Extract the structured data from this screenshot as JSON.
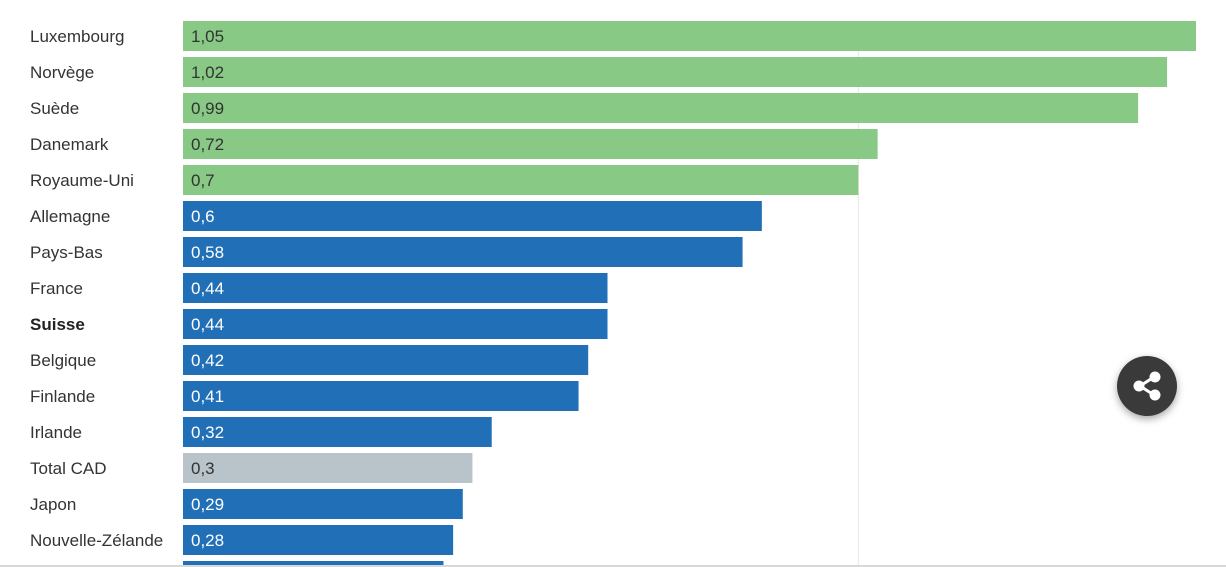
{
  "chart_data": {
    "type": "bar",
    "orientation": "horizontal",
    "categories": [
      "Luxembourg",
      "Norvège",
      "Suède",
      "Danemark",
      "Royaume-Uni",
      "Allemagne",
      "Pays-Bas",
      "France",
      "Suisse",
      "Belgique",
      "Finlande",
      "Irlande",
      "Total CAD",
      "Japon",
      "Nouvelle-Zélande"
    ],
    "values": [
      1.05,
      1.02,
      0.99,
      0.72,
      0.7,
      0.6,
      0.58,
      0.44,
      0.44,
      0.42,
      0.41,
      0.32,
      0.3,
      0.29,
      0.28
    ],
    "value_labels": [
      "1,05",
      "1,02",
      "0,99",
      "0,72",
      "0,7",
      "0,6",
      "0,58",
      "0,44",
      "0,44",
      "0,42",
      "0,41",
      "0,32",
      "0,3",
      "0,29",
      "0,28"
    ],
    "bar_groups": [
      "green",
      "green",
      "green",
      "green",
      "green",
      "blue",
      "blue",
      "blue",
      "blue",
      "blue",
      "blue",
      "blue",
      "gray",
      "blue",
      "blue"
    ],
    "emphasized_category": "Suisse",
    "partial_next_value": 0.27,
    "reference_line_value": 0.7,
    "xlim": [
      0,
      1.05
    ],
    "colors": {
      "green": "#88c986",
      "blue": "#2170b7",
      "gray": "#b8c4c9",
      "reference_line": "#e6e6e6"
    },
    "title": "",
    "xlabel": "",
    "ylabel": ""
  },
  "share": {
    "icon": "share-icon"
  }
}
